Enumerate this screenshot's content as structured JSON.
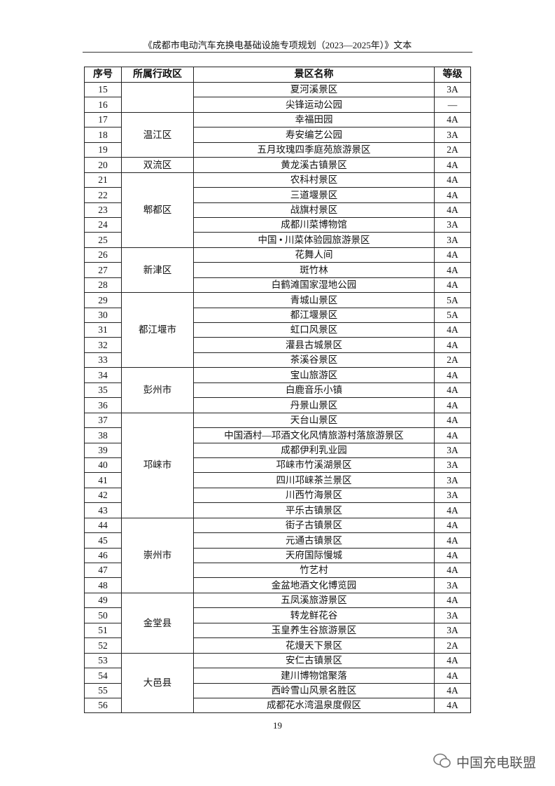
{
  "header": {
    "title": "《成都市电动汽车充换电基础设施专项规划（2023—2025年）》文本"
  },
  "table": {
    "columns": [
      "序号",
      "所属行政区",
      "景区名称",
      "等级"
    ],
    "groups": [
      {
        "rows": [
          [
            "15",
            "夏河溪景区",
            "3A"
          ],
          [
            "16",
            "尖锋运动公园",
            "—"
          ]
        ]
      },
      {
        "district": "温江区",
        "rows": [
          [
            "17",
            "幸福田园",
            "4A"
          ],
          [
            "18",
            "寿安编艺公园",
            "3A"
          ],
          [
            "19",
            "五月玫瑰四季庭苑旅游景区",
            "2A"
          ]
        ]
      },
      {
        "district": "双流区",
        "rows": [
          [
            "20",
            "黄龙溪古镇景区",
            "4A"
          ]
        ]
      },
      {
        "district": "郫都区",
        "rows": [
          [
            "21",
            "农科村景区",
            "4A"
          ],
          [
            "22",
            "三道堰景区",
            "4A"
          ],
          [
            "23",
            "战旗村景区",
            "4A"
          ],
          [
            "24",
            "成都川菜博物馆",
            "3A"
          ],
          [
            "25",
            "中国 • 川菜体验园旅游景区",
            "3A"
          ]
        ]
      },
      {
        "district": "新津区",
        "rows": [
          [
            "26",
            "花舞人间",
            "4A"
          ],
          [
            "27",
            "斑竹林",
            "4A"
          ],
          [
            "28",
            "白鹤滩国家湿地公园",
            "4A"
          ]
        ]
      },
      {
        "district": "都江堰市",
        "rows": [
          [
            "29",
            "青城山景区",
            "5A"
          ],
          [
            "30",
            "都江堰景区",
            "5A"
          ],
          [
            "31",
            "虹口风景区",
            "4A"
          ],
          [
            "32",
            "灌县古城景区",
            "4A"
          ],
          [
            "33",
            "茶溪谷景区",
            "2A"
          ]
        ]
      },
      {
        "district": "彭州市",
        "rows": [
          [
            "34",
            "宝山旅游区",
            "4A"
          ],
          [
            "35",
            "白鹿音乐小镇",
            "4A"
          ],
          [
            "36",
            "丹景山景区",
            "4A"
          ]
        ]
      },
      {
        "district": "邛崃市",
        "rows": [
          [
            "37",
            "天台山景区",
            "4A"
          ],
          [
            "38",
            "中国酒村—邛酒文化风情旅游村落旅游景区",
            "4A"
          ],
          [
            "39",
            "成都伊利乳业园",
            "3A"
          ],
          [
            "40",
            "邛崃市竹溪湖景区",
            "3A"
          ],
          [
            "41",
            "四川邛崃茶兰景区",
            "3A"
          ],
          [
            "42",
            "川西竹海景区",
            "3A"
          ],
          [
            "43",
            "平乐古镇景区",
            "4A"
          ]
        ]
      },
      {
        "district": "崇州市",
        "rows": [
          [
            "44",
            "街子古镇景区",
            "4A"
          ],
          [
            "45",
            "元通古镇景区",
            "4A"
          ],
          [
            "46",
            "天府国际慢城",
            "4A"
          ],
          [
            "47",
            "竹艺村",
            "4A"
          ],
          [
            "48",
            "金盆地酒文化博览园",
            "3A"
          ]
        ]
      },
      {
        "district": "金堂县",
        "rows": [
          [
            "49",
            "五凤溪旅游景区",
            "4A"
          ],
          [
            "50",
            "转龙鲜花谷",
            "3A"
          ],
          [
            "51",
            "玉皇养生谷旅游景区",
            "3A"
          ],
          [
            "52",
            "花熳天下景区",
            "2A"
          ]
        ]
      },
      {
        "district": "大邑县",
        "rows": [
          [
            "53",
            "安仁古镇景区",
            "4A"
          ],
          [
            "54",
            "建川博物馆聚落",
            "4A"
          ],
          [
            "55",
            "西岭雪山风景名胜区",
            "4A"
          ],
          [
            "56",
            "成都花水湾温泉度假区",
            "4A"
          ]
        ]
      }
    ]
  },
  "footer": {
    "page": "19",
    "watermark": "中国充电联盟"
  }
}
